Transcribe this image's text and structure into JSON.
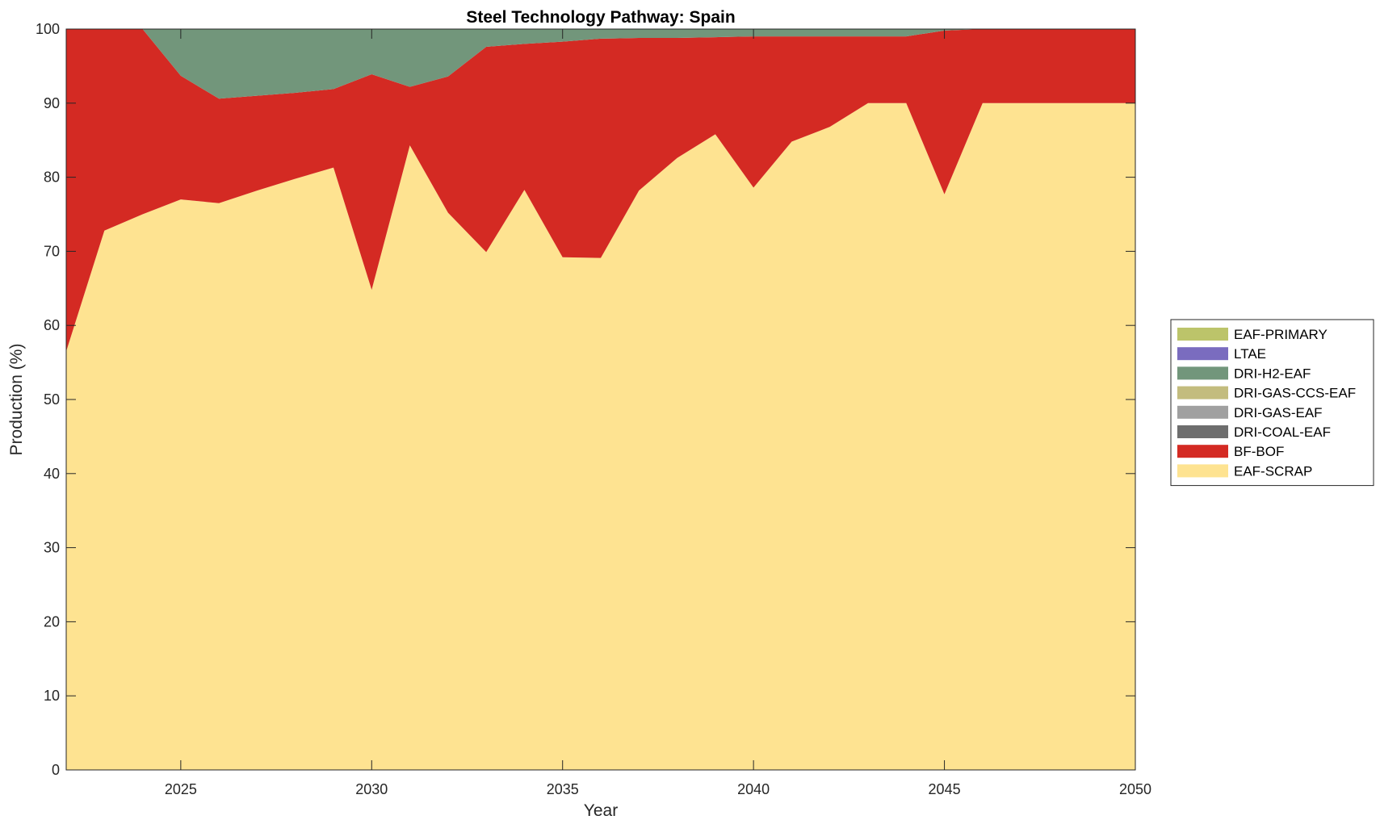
{
  "chart_data": {
    "type": "area",
    "stacked": true,
    "title": "Steel Technology Pathway: Spain",
    "xlabel": "Year",
    "ylabel": "Production (%)",
    "xlim": [
      2022,
      2050
    ],
    "ylim": [
      0,
      100
    ],
    "xticks": [
      2025,
      2030,
      2035,
      2040,
      2045,
      2050
    ],
    "yticks": [
      0,
      10,
      20,
      30,
      40,
      50,
      60,
      70,
      80,
      90,
      100
    ],
    "grid": false,
    "legend_position": "right",
    "x": [
      2022,
      2023,
      2024,
      2025,
      2026,
      2027,
      2028,
      2029,
      2030,
      2031,
      2032,
      2033,
      2034,
      2035,
      2036,
      2037,
      2038,
      2039,
      2040,
      2041,
      2042,
      2043,
      2044,
      2045,
      2046,
      2047,
      2048,
      2049,
      2050
    ],
    "series": [
      {
        "name": "EAF-SCRAP",
        "color": "#FEE391",
        "values": [
          56.5,
          72.8,
          75.0,
          77.0,
          76.5,
          78.2,
          79.8,
          81.3,
          64.8,
          84.3,
          75.2,
          69.9,
          78.3,
          69.2,
          69.1,
          78.2,
          82.6,
          85.8,
          78.6,
          84.8,
          86.8,
          90.0,
          90.0,
          77.7,
          90.0,
          90.0,
          90.0,
          90.0,
          90.0
        ]
      },
      {
        "name": "BF-BOF",
        "color": "#D42A23",
        "values": [
          43.5,
          27.2,
          25.0,
          16.7,
          14.1,
          12.8,
          11.6,
          10.6,
          29.1,
          7.9,
          18.4,
          27.7,
          19.7,
          29.1,
          29.6,
          20.6,
          16.2,
          13.1,
          20.4,
          14.2,
          12.2,
          9.0,
          9.0,
          22.1,
          10.0,
          10.0,
          10.0,
          10.0,
          10.0
        ]
      },
      {
        "name": "DRI-COAL-EAF",
        "color": "#6E6E6E",
        "values": [
          0,
          0,
          0,
          0,
          0,
          0,
          0,
          0,
          0,
          0,
          0,
          0,
          0,
          0,
          0,
          0,
          0,
          0,
          0,
          0,
          0,
          0,
          0,
          0,
          0,
          0,
          0,
          0,
          0
        ]
      },
      {
        "name": "DRI-GAS-EAF",
        "color": "#A0A0A0",
        "values": [
          0,
          0,
          0,
          0,
          0,
          0,
          0,
          0,
          0,
          0,
          0,
          0,
          0,
          0,
          0,
          0,
          0,
          0,
          0,
          0,
          0,
          0,
          0,
          0,
          0,
          0,
          0,
          0,
          0
        ]
      },
      {
        "name": "DRI-GAS-CCS-EAF",
        "color": "#C3BC7E",
        "values": [
          0,
          0,
          0,
          0,
          0,
          0,
          0,
          0,
          0,
          0,
          0,
          0,
          0,
          0,
          0,
          0,
          0,
          0,
          0,
          0,
          0,
          0,
          0,
          0,
          0,
          0,
          0,
          0,
          0
        ]
      },
      {
        "name": "DRI-H2-EAF",
        "color": "#72967B",
        "values": [
          0,
          0,
          0,
          6.3,
          9.4,
          9.0,
          8.6,
          8.1,
          6.1,
          7.8,
          6.4,
          2.4,
          2.0,
          1.7,
          1.3,
          1.2,
          1.2,
          1.1,
          1.0,
          1.0,
          1.0,
          1.0,
          1.0,
          0.2,
          0,
          0,
          0,
          0,
          0
        ]
      },
      {
        "name": "LTAE",
        "color": "#7A6CBF",
        "values": [
          0,
          0,
          0,
          0,
          0,
          0,
          0,
          0,
          0,
          0,
          0,
          0,
          0,
          0,
          0,
          0,
          0,
          0,
          0,
          0,
          0,
          0,
          0,
          0,
          0,
          0,
          0,
          0,
          0
        ]
      },
      {
        "name": "EAF-PRIMARY",
        "color": "#BCC46A",
        "values": [
          0,
          0,
          0,
          0,
          0,
          0,
          0,
          0,
          0,
          0,
          0,
          0,
          0,
          0,
          0,
          0,
          0,
          0,
          0,
          0,
          0,
          0,
          0,
          0,
          0,
          0,
          0,
          0,
          0
        ]
      }
    ],
    "legend_order": [
      "EAF-PRIMARY",
      "LTAE",
      "DRI-H2-EAF",
      "DRI-GAS-CCS-EAF",
      "DRI-GAS-EAF",
      "DRI-COAL-EAF",
      "BF-BOF",
      "EAF-SCRAP"
    ]
  }
}
